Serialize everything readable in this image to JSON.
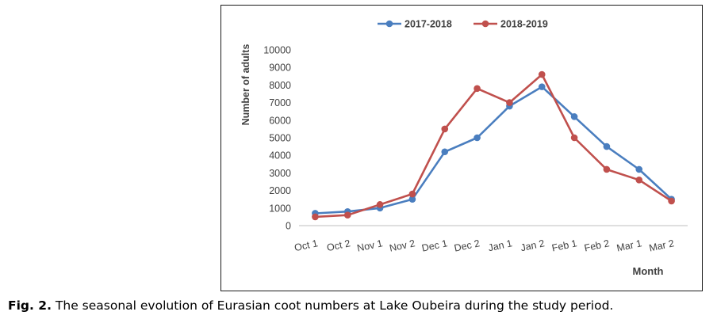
{
  "chart_data": {
    "type": "line",
    "categories": [
      "Oct 1",
      "Oct 2",
      "Nov 1",
      "Nov 2",
      "Dec 1",
      "Dec 2",
      "Jan 1",
      "Jan 2",
      "Feb 1",
      "Feb 2",
      "Mar 1",
      "Mar 2"
    ],
    "series": [
      {
        "name": "2017-2018",
        "color": "#4a7ebf",
        "values": [
          700,
          800,
          1000,
          1500,
          4200,
          5000,
          6800,
          7900,
          6200,
          4500,
          3200,
          1500
        ]
      },
      {
        "name": "2018-2019",
        "color": "#c0504d",
        "values": [
          500,
          600,
          1200,
          1800,
          5500,
          7800,
          7000,
          8600,
          5000,
          3200,
          2600,
          1400
        ]
      }
    ],
    "xlabel": "Month",
    "ylabel": "Number of adults",
    "ylim": [
      0,
      10000
    ],
    "yticks": [
      0,
      1000,
      2000,
      3000,
      4000,
      5000,
      6000,
      7000,
      8000,
      9000,
      10000
    ],
    "grid": false,
    "legend_position": "top"
  },
  "caption": {
    "label": "Fig. 2.",
    "text": " The seasonal evolution of Eurasian coot numbers at Lake Oubeira during the study period."
  }
}
